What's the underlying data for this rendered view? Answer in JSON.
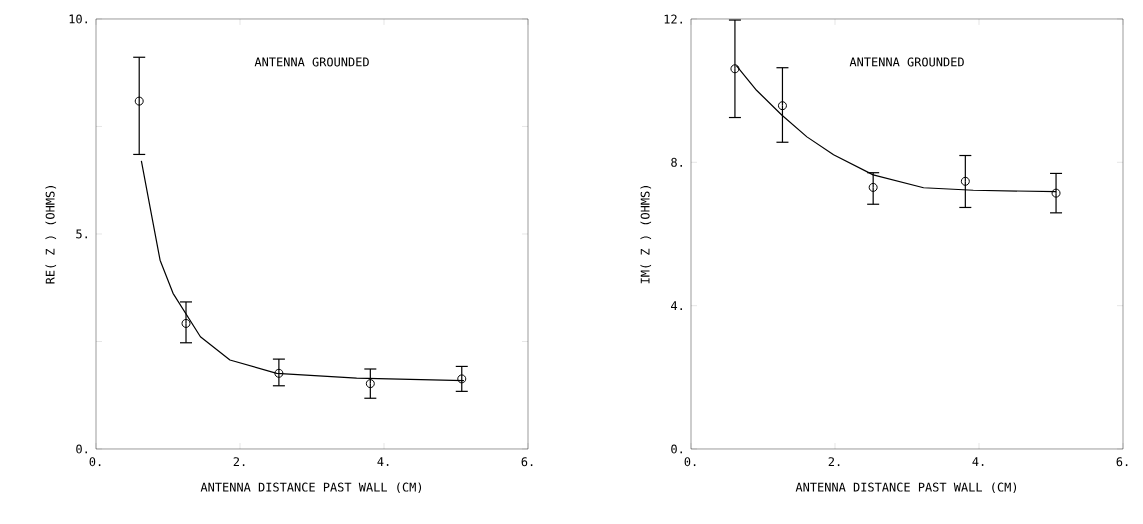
{
  "chart_data": [
    {
      "type": "scatter",
      "annotations": [
        "ANTENNA GROUNDED"
      ],
      "xlabel": "ANTENNA DISTANCE PAST WALL (CM)",
      "ylabel": "RE( Z )   (OHMS)",
      "xlim": [
        0,
        6
      ],
      "ylim": [
        0,
        10
      ],
      "xticks": [
        {
          "value": 0,
          "label": "0."
        },
        {
          "value": 2,
          "label": "2."
        },
        {
          "value": 4,
          "label": "4."
        },
        {
          "value": 6,
          "label": "6."
        }
      ],
      "yticks": [
        {
          "value": 0,
          "label": "0."
        },
        {
          "value": 2.5,
          "label": null
        },
        {
          "value": 5,
          "label": "5."
        },
        {
          "value": 7.5,
          "label": null
        },
        {
          "value": 10,
          "label": "10."
        }
      ],
      "marker": "circle",
      "series": [
        {
          "color": "#000000",
          "x": [
            0.6,
            1.25,
            2.54,
            3.81,
            5.08
          ],
          "values": [
            8.09,
            2.92,
            1.76,
            1.52,
            1.63
          ],
          "errors": [
            [
              6.85,
              9.11
            ],
            [
              2.47,
              3.42
            ],
            [
              1.47,
              2.09
            ],
            [
              1.18,
              1.86
            ],
            [
              1.34,
              1.92
            ]
          ]
        },
        {
          "type": "line",
          "color": "#000000",
          "marker": "none",
          "x": [
            0.63,
            0.75,
            0.89,
            1.07,
            1.45,
            1.86,
            2.51,
            3.62,
            5.11
          ],
          "values": [
            6.7,
            5.63,
            4.39,
            3.62,
            2.61,
            2.07,
            1.76,
            1.65,
            1.59
          ]
        }
      ]
    },
    {
      "type": "scatter",
      "annotations": [
        "ANTENNA GROUNDED"
      ],
      "xlabel": "ANTENNA DISTANCE PAST WALL (CM)",
      "ylabel": "IM( Z )   (OHMS)",
      "xlim": [
        0,
        6
      ],
      "ylim": [
        0,
        12
      ],
      "xticks": [
        {
          "value": 0,
          "label": "0."
        },
        {
          "value": 2,
          "label": "2."
        },
        {
          "value": 4,
          "label": "4."
        },
        {
          "value": 6,
          "label": "6."
        }
      ],
      "yticks": [
        {
          "value": 0,
          "label": "0."
        },
        {
          "value": 4,
          "label": "4."
        },
        {
          "value": 8,
          "label": "8."
        },
        {
          "value": 12,
          "label": "12."
        }
      ],
      "marker": "circle",
      "series": [
        {
          "color": "#000000",
          "x": [
            0.61,
            1.27,
            2.53,
            3.81,
            5.07
          ],
          "values": [
            10.61,
            9.58,
            7.3,
            7.47,
            7.14
          ],
          "errors": [
            [
              9.25,
              11.97
            ],
            [
              8.56,
              10.64
            ],
            [
              6.83,
              7.71
            ],
            [
              6.74,
              8.19
            ],
            [
              6.59,
              7.69
            ]
          ]
        },
        {
          "type": "line",
          "color": "#000000",
          "marker": "none",
          "x": [
            0.63,
            0.91,
            1.26,
            1.61,
            1.98,
            2.53,
            3.23,
            3.92,
            5.07
          ],
          "values": [
            10.7,
            10.01,
            9.32,
            8.71,
            8.21,
            7.65,
            7.29,
            7.22,
            7.18
          ]
        }
      ]
    }
  ]
}
